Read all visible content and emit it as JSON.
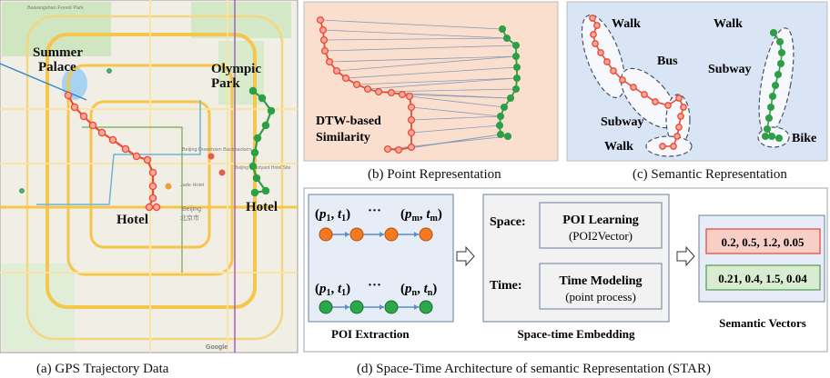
{
  "map": {
    "labels": {
      "summer_palace": [
        "Summer",
        "Palace"
      ],
      "olympic_park": [
        "Olympic",
        "Park"
      ],
      "hotel_a": "Hotel",
      "hotel_b": "Hotel"
    },
    "place_names": [
      "Bawangshan Forest Park",
      "BEIJING",
      "Beijing Downtown Backpackers",
      "Jade Hotel",
      "Beijing Courtyard Hotel Site",
      "Beijing",
      "北京市",
      "Google"
    ]
  },
  "point_panel": {
    "label": [
      "DTW-based",
      "Similarity"
    ]
  },
  "semantic_panel": {
    "modes": [
      "Walk",
      "Bus",
      "Subway",
      "Walk",
      "Walk",
      "Subway",
      "Bike"
    ]
  },
  "star": {
    "poi": {
      "left_symbol": "(p1, t1)",
      "dots": "···",
      "right_symbol_m": "(pm, tm)",
      "right_symbol_n": "(pn, tn)",
      "title": "POI Extraction"
    },
    "space_label": "Space:",
    "time_label": "Time:",
    "poi_learning": {
      "title": "POI Learning",
      "sub": "(POI2Vector)"
    },
    "time_modeling": {
      "title": "Time Modeling",
      "sub": "(point process)"
    },
    "embedding_title": "Space-time  Embedding",
    "vectors": [
      "0.2, 0.5, 1.2, 0.05",
      "0.21, 0.4, 1.5, 0.04"
    ],
    "vectors_title": "Semantic Vectors"
  },
  "captions": {
    "a": "(a) GPS Trajectory Data",
    "b": "(b) Point Representation",
    "c": "(c) Semantic Representation",
    "d": "(d) Space-Time Architecture of semantic Representation (STAR)"
  },
  "colors": {
    "red": "#e84a34",
    "green": "#2e9e47",
    "orange": "#f57a1f"
  }
}
